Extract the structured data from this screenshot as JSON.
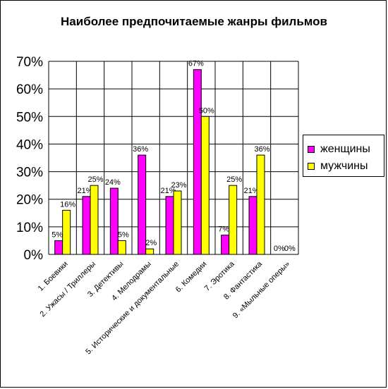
{
  "chart_data": {
    "type": "bar",
    "title": "Наиболее предпочитаемые жанры фильмов",
    "categories": [
      "1. Боевики",
      "2. Ужасы / Триллеры",
      "3. Детективы",
      "4. Мелодрамы",
      "5. Исторические и документальные",
      "6. Комедии",
      "7. Эротика",
      "8. Фантастика",
      "9. «Мыльные оперы»"
    ],
    "series": [
      {
        "name": "женщины",
        "color": "#ff00ff",
        "values": [
          5,
          21,
          24,
          36,
          21,
          67,
          7,
          21,
          0
        ]
      },
      {
        "name": "мужчины",
        "color": "#ffff00",
        "values": [
          16,
          25,
          5,
          2,
          23,
          50,
          25,
          36,
          0
        ]
      }
    ],
    "yticks": [
      "0%",
      "10%",
      "20%",
      "30%",
      "40%",
      "50%",
      "60%",
      "70%"
    ],
    "ylim": [
      0,
      70
    ],
    "grid": true,
    "legend_position": "right"
  }
}
